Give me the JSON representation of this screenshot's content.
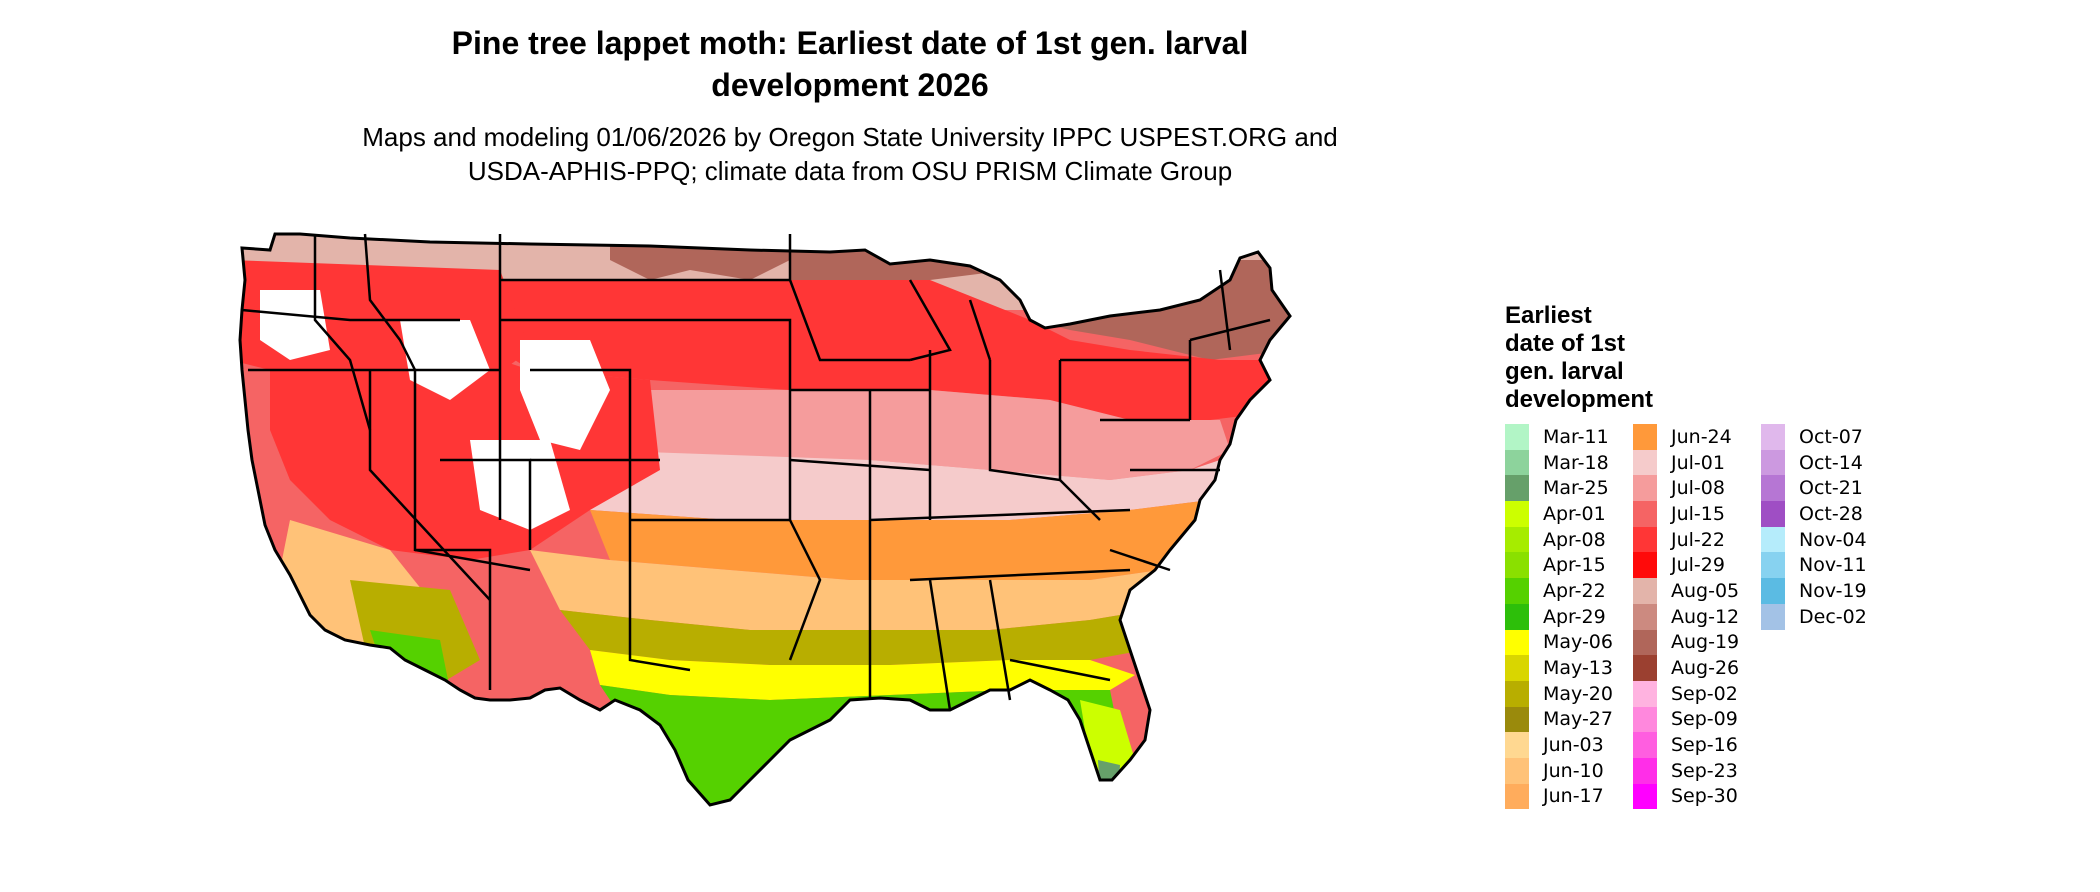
{
  "header": {
    "title_line1": "Pine tree lappet moth: Earliest date of 1st gen. larval",
    "title_line2": "development 2026",
    "subtitle_line1": "Maps and modeling 01/06/2026 by Oregon State University IPPC USPEST.ORG and",
    "subtitle_line2": "USDA-APHIS-PPQ; climate data from OSU PRISM Climate Group"
  },
  "legend": {
    "title_lines": [
      "Earliest",
      "date of 1st",
      "gen. larval",
      "development"
    ],
    "columns": [
      [
        {
          "label": "Mar-11",
          "color": "#b2f5c6"
        },
        {
          "label": "Mar-18",
          "color": "#8dd39c"
        },
        {
          "label": "Mar-25",
          "color": "#66a06a"
        },
        {
          "label": "Apr-01",
          "color": "#ccff00"
        },
        {
          "label": "Apr-08",
          "color": "#a6ec00"
        },
        {
          "label": "Apr-15",
          "color": "#8ae000"
        },
        {
          "label": "Apr-22",
          "color": "#55d100"
        },
        {
          "label": "Apr-29",
          "color": "#2dbf0a"
        },
        {
          "label": "May-06",
          "color": "#ffff00"
        },
        {
          "label": "May-13",
          "color": "#d9d600"
        },
        {
          "label": "May-20",
          "color": "#b8ae00"
        },
        {
          "label": "May-27",
          "color": "#9a8a0c"
        },
        {
          "label": "Jun-03",
          "color": "#ffd891"
        },
        {
          "label": "Jun-10",
          "color": "#ffc278"
        },
        {
          "label": "Jun-17",
          "color": "#ffac5c"
        }
      ],
      [
        {
          "label": "Jun-24",
          "color": "#ff993a"
        },
        {
          "label": "Jul-01",
          "color": "#f5cbcb"
        },
        {
          "label": "Jul-08",
          "color": "#f59c9c"
        },
        {
          "label": "Jul-15",
          "color": "#f56464"
        },
        {
          "label": "Jul-22",
          "color": "#ff3636"
        },
        {
          "label": "Jul-29",
          "color": "#ff0a0a"
        },
        {
          "label": "Aug-05",
          "color": "#e3b4aa"
        },
        {
          "label": "Aug-12",
          "color": "#cc8a80"
        },
        {
          "label": "Aug-19",
          "color": "#b0665a"
        },
        {
          "label": "Aug-26",
          "color": "#9b4030"
        },
        {
          "label": "Sep-02",
          "color": "#ffb3e0"
        },
        {
          "label": "Sep-09",
          "color": "#ff88dd"
        },
        {
          "label": "Sep-16",
          "color": "#ff5ee0"
        },
        {
          "label": "Sep-23",
          "color": "#ff2ee8"
        },
        {
          "label": "Sep-30",
          "color": "#ff00ff"
        }
      ],
      [
        {
          "label": "Oct-07",
          "color": "#e0b8ec"
        },
        {
          "label": "Oct-14",
          "color": "#cc99e0"
        },
        {
          "label": "Oct-21",
          "color": "#b676d4"
        },
        {
          "label": "Oct-28",
          "color": "#9f4ec4"
        },
        {
          "label": "Nov-04",
          "color": "#b5ecfb"
        },
        {
          "label": "Nov-11",
          "color": "#87d2f0"
        },
        {
          "label": "Nov-19",
          "color": "#5bbbe3"
        },
        {
          "label": "Dec-02",
          "color": "#a3c2e6"
        }
      ]
    ]
  },
  "map": {
    "region": "conterminous-united-states",
    "border_color": "#000000",
    "zone_colors": {
      "far_north": "#b0665a",
      "north_plains": "#ff3636",
      "north_mid": "#f56464",
      "central": "#f5cbcb",
      "mid_south": "#ff993a",
      "south": "#ffc278",
      "deep_south": "#b8ae00",
      "gulf": "#ffff00",
      "coast": "#55d100",
      "florida_tip": "#66a06a",
      "mountains": "#ffffff",
      "mountain_fringe": "#ff5ee0"
    }
  }
}
